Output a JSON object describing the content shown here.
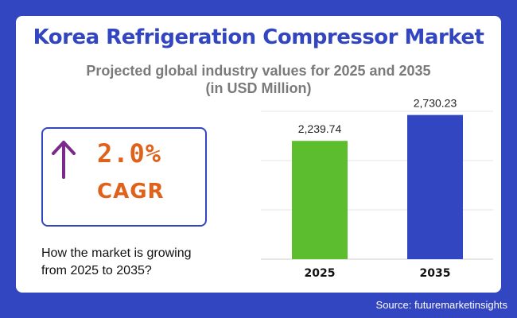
{
  "header": {
    "title": "Korea Refrigeration Compressor Market",
    "subtitle_line1": "Projected global industry values for 2025 and 2035",
    "subtitle_line2": "(in USD Million)"
  },
  "cagr": {
    "value": "2.0%",
    "label": "CAGR",
    "icon": "arrow-up-icon",
    "arrow_color": "#7b2a8c",
    "text_color": "#e0611a"
  },
  "question": {
    "line1": "How the market is growing",
    "line2": "from 2025 to 2035?"
  },
  "source": "Source: futuremarketinsights",
  "colors": {
    "background": "#3346c2",
    "bar_2025": "#5cbd2e",
    "bar_2035": "#3346c2"
  },
  "chart_data": {
    "type": "bar",
    "categories": [
      "2025",
      "2035"
    ],
    "values": [
      2239.74,
      2730.23
    ],
    "value_labels": [
      "2,239.74",
      "2,730.23"
    ],
    "colors": [
      "#5cbd2e",
      "#3346c2"
    ],
    "title": "",
    "xlabel": "",
    "ylabel": "",
    "ylim": [
      0,
      2800
    ],
    "grid": true
  }
}
